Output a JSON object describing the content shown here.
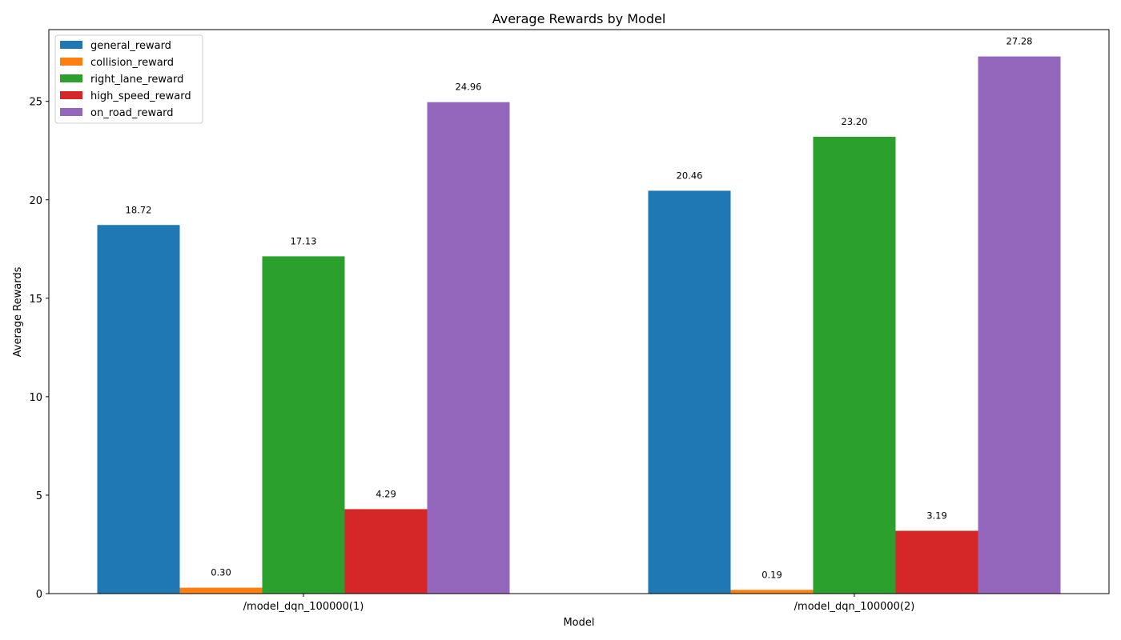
{
  "chart_data": {
    "type": "bar",
    "title": "Average Rewards by Model",
    "xlabel": "Model",
    "ylabel": "Average Rewards",
    "categories": [
      "/model_dqn_100000(1)",
      "/model_dqn_100000(2)"
    ],
    "series": [
      {
        "name": "general_reward",
        "color": "#1f77b4",
        "values": [
          18.72,
          20.46
        ],
        "labels": [
          "18.72",
          "20.46"
        ]
      },
      {
        "name": "collision_reward",
        "color": "#ff7f0e",
        "values": [
          0.3,
          0.19
        ],
        "labels": [
          "0.30",
          "0.19"
        ]
      },
      {
        "name": "right_lane_reward",
        "color": "#2ca02c",
        "values": [
          17.13,
          23.2
        ],
        "labels": [
          "17.13",
          "23.20"
        ]
      },
      {
        "name": "high_speed_reward",
        "color": "#d62728",
        "values": [
          4.29,
          3.19
        ],
        "labels": [
          "4.29",
          "3.19"
        ]
      },
      {
        "name": "on_road_reward",
        "color": "#9467bd",
        "values": [
          24.96,
          27.28
        ],
        "labels": [
          "24.96",
          "27.28"
        ]
      }
    ],
    "ylim": [
      0,
      28.644
    ],
    "yticks": [
      0,
      5,
      10,
      15,
      20,
      25
    ],
    "ytick_labels": [
      "0",
      "5",
      "10",
      "15",
      "20",
      "25"
    ],
    "grid": false,
    "legend": "top-left"
  }
}
